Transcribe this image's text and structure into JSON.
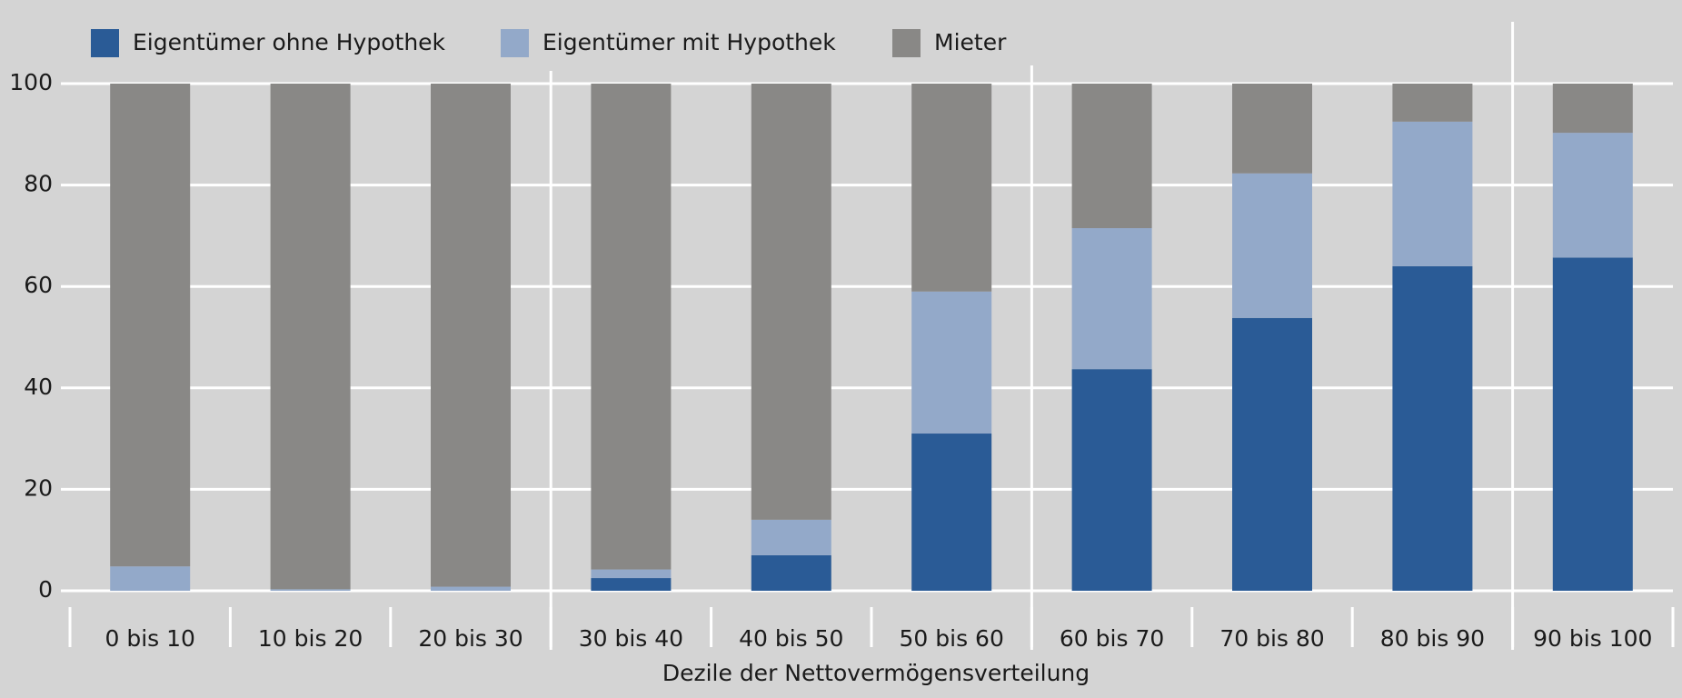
{
  "chart_data": {
    "type": "stacked_bar",
    "x_label": "Dezile der Nettovermögensverteilung",
    "categories": [
      "0 bis 10",
      "10 bis 20",
      "20 bis 30",
      "30 bis 40",
      "40 bis 50",
      "50 bis 60",
      "60 bis 70",
      "70 bis 80",
      "80 bis 90",
      "90 bis 100"
    ],
    "series": [
      {
        "name": "Eigentümer ohne Hypothek",
        "color": "#2a5b96",
        "values": [
          0,
          0,
          0,
          2.5,
          7,
          31,
          43.7,
          53.8,
          64,
          65.7
        ]
      },
      {
        "name": "Eigentümer mit Hypothek",
        "color": "#93a9c9",
        "values": [
          4.8,
          0.3,
          0.8,
          1.7,
          7,
          28,
          27.8,
          28.5,
          28.5,
          24.6
        ]
      },
      {
        "name": "Mieter",
        "color": "#898886",
        "values": [
          95.2,
          99.7,
          99.2,
          95.8,
          86,
          41,
          28.5,
          17.7,
          7.5,
          9.7
        ]
      }
    ],
    "ylim": [
      0,
      100
    ],
    "yticks": [
      0,
      20,
      40,
      60,
      80,
      100
    ],
    "grid": true
  }
}
